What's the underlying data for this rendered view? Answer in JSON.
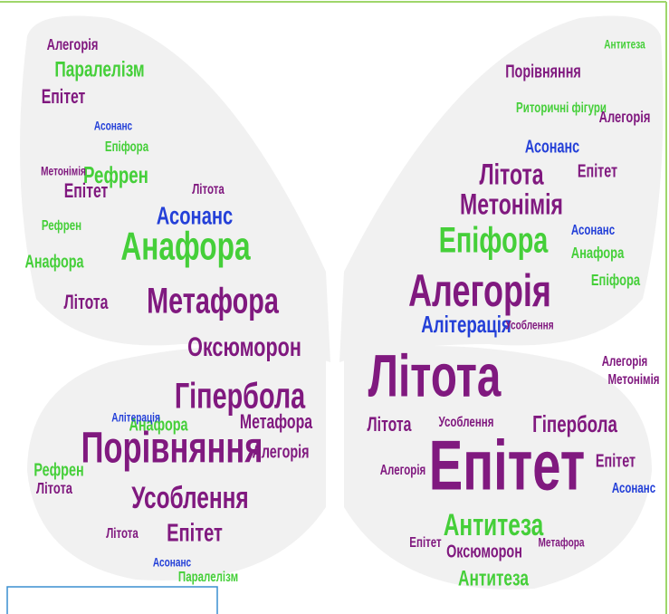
{
  "words": [
    "Алегорія",
    "Паралелізм",
    "Епітет",
    "Асонанс",
    "Епіфора",
    "Рефрен",
    "Епітет",
    "Асонанс",
    "Анафора",
    "Метафора",
    "Літота",
    "Оксюморон",
    "Гіпербола",
    "Порівняння",
    "Усоблення",
    "Епітет",
    "Анафора",
    "Алітерація",
    "Метафора",
    "Алегорія",
    "Рефрен",
    "Літота",
    "Паралелізм",
    "Асонанс",
    "Літота",
    "Анафора",
    "Рефрен",
    "Метонімія",
    "Літота",
    "Антитеза",
    "Порівняння",
    "Риторичні фігури",
    "Алегорія",
    "Асонанс",
    "Епітет",
    "Літота",
    "Метонімія",
    "Епіфора",
    "Асонанс",
    "Анафора",
    "Алегорія",
    "Алітерація",
    "Усоблення",
    "Літота",
    "Гіпербола",
    "Епітет",
    "Антитеза",
    "Усоблення",
    "Оксюморон",
    "Антитеза",
    "Літота",
    "Алегорія",
    "Епітет",
    "Асонанс",
    "Метонімія",
    "Алегорія",
    "Епіфора",
    "Метафора",
    "Епітет"
  ]
}
